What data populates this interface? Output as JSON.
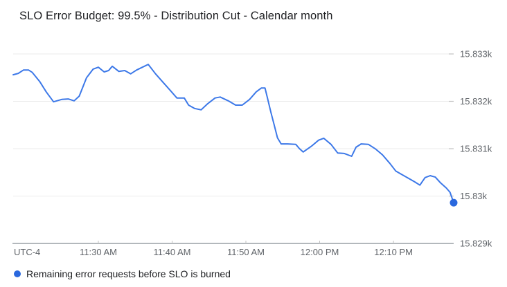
{
  "title": "SLO Error Budget: 99.5% - Distribution Cut - Calendar month",
  "legend": {
    "label": "Remaining error requests before SLO is burned",
    "dot_color": "#2a68de"
  },
  "colors": {
    "line": "#3c78e8",
    "end_dot": "#2a68de",
    "grid": "#ebebeb",
    "grid_tick": "#c2c2c2",
    "axis": "#9aa0a6",
    "axis_label": "#5f6368",
    "title_text": "#202124",
    "background": "#ffffff"
  },
  "chart_data": {
    "type": "line",
    "title": "SLO Error Budget: 99.5% - Distribution Cut - Calendar month",
    "legend_position": "bottom-left",
    "grid": "horizontal-only",
    "x_axis": {
      "timezone_label": "UTC-4",
      "range_minutes": [
        0,
        60
      ],
      "start_time": "11:18 AM",
      "end_time": "12:18 PM",
      "ticks": [
        {
          "t": 11.6,
          "label": "11:30 AM"
        },
        {
          "t": 21.65,
          "label": "11:40 AM"
        },
        {
          "t": 31.7,
          "label": "11:50 AM"
        },
        {
          "t": 41.75,
          "label": "12:00 PM"
        },
        {
          "t": 51.8,
          "label": "12:10 PM"
        }
      ]
    },
    "y_axis": {
      "side": "right",
      "range": [
        15829,
        15833
      ],
      "ticks": [
        {
          "v": 15833,
          "label": "15.833k"
        },
        {
          "v": 15832,
          "label": "15.832k"
        },
        {
          "v": 15831,
          "label": "15.831k"
        },
        {
          "v": 15830,
          "label": "15.83k"
        },
        {
          "v": 15829,
          "label": "15.829k"
        }
      ]
    },
    "end_marker": true,
    "series": [
      {
        "name": "Remaining error requests before SLO is burned",
        "color": "#3c78e8",
        "points": [
          [
            0,
            15832.56
          ],
          [
            0.7,
            15832.59
          ],
          [
            1.4,
            15832.66
          ],
          [
            2.1,
            15832.66
          ],
          [
            2.6,
            15832.61
          ],
          [
            3.6,
            15832.42
          ],
          [
            4.5,
            15832.2
          ],
          [
            5.5,
            15831.99
          ],
          [
            6.6,
            15832.04
          ],
          [
            7.5,
            15832.05
          ],
          [
            8.3,
            15832.01
          ],
          [
            9,
            15832.11
          ],
          [
            10,
            15832.5
          ],
          [
            10.9,
            15832.68
          ],
          [
            11.6,
            15832.72
          ],
          [
            12.4,
            15832.62
          ],
          [
            13,
            15832.65
          ],
          [
            13.5,
            15832.74
          ],
          [
            14.4,
            15832.63
          ],
          [
            15.2,
            15832.65
          ],
          [
            16,
            15832.58
          ],
          [
            16.8,
            15832.66
          ],
          [
            17.6,
            15832.72
          ],
          [
            18.4,
            15832.78
          ],
          [
            19.4,
            15832.58
          ],
          [
            20.3,
            15832.42
          ],
          [
            21.4,
            15832.23
          ],
          [
            22.3,
            15832.07
          ],
          [
            23.3,
            15832.07
          ],
          [
            23.9,
            15831.92
          ],
          [
            24.7,
            15831.85
          ],
          [
            25.6,
            15831.82
          ],
          [
            26.5,
            15831.95
          ],
          [
            27.5,
            15832.07
          ],
          [
            28.2,
            15832.09
          ],
          [
            29.3,
            15832.01
          ],
          [
            30.3,
            15831.92
          ],
          [
            31.2,
            15831.92
          ],
          [
            32.2,
            15832.04
          ],
          [
            33.1,
            15832.2
          ],
          [
            33.8,
            15832.28
          ],
          [
            34.3,
            15832.28
          ],
          [
            34.6,
            15832.09
          ],
          [
            35.1,
            15831.77
          ],
          [
            35.6,
            15831.47
          ],
          [
            36,
            15831.23
          ],
          [
            36.5,
            15831.1
          ],
          [
            37.4,
            15831.1
          ],
          [
            38.5,
            15831.09
          ],
          [
            39,
            15831
          ],
          [
            39.5,
            15830.93
          ],
          [
            40.6,
            15831.05
          ],
          [
            41.6,
            15831.18
          ],
          [
            42.3,
            15831.22
          ],
          [
            43.3,
            15831.09
          ],
          [
            44.2,
            15830.91
          ],
          [
            45.1,
            15830.9
          ],
          [
            46.1,
            15830.84
          ],
          [
            46.7,
            15831.03
          ],
          [
            47.4,
            15831.1
          ],
          [
            48.4,
            15831.09
          ],
          [
            49.4,
            15830.99
          ],
          [
            50.3,
            15830.87
          ],
          [
            51.3,
            15830.69
          ],
          [
            52.1,
            15830.53
          ],
          [
            53,
            15830.45
          ],
          [
            54,
            15830.36
          ],
          [
            54.7,
            15830.3
          ],
          [
            55.4,
            15830.23
          ],
          [
            56.1,
            15830.39
          ],
          [
            56.8,
            15830.43
          ],
          [
            57.5,
            15830.4
          ],
          [
            58.2,
            15830.28
          ],
          [
            59,
            15830.17
          ],
          [
            59.5,
            15830.08
          ],
          [
            60,
            15829.86
          ]
        ]
      }
    ]
  }
}
